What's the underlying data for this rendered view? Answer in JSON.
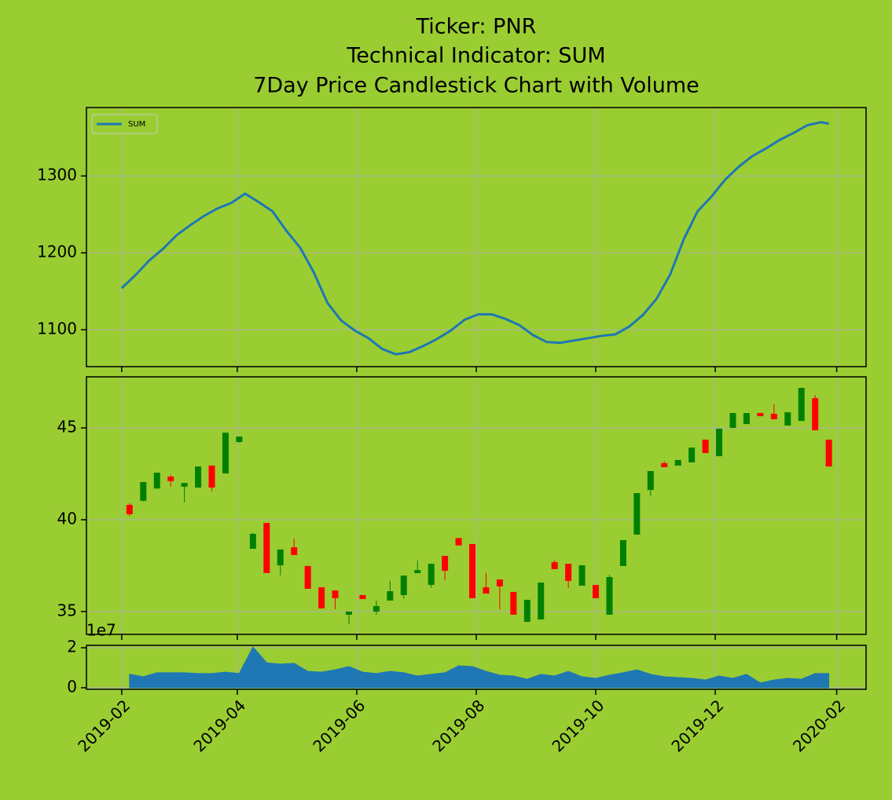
{
  "chart_data": [
    {
      "type": "line",
      "title": [
        "Ticker: PNR",
        "Technical Indicator: SUM",
        "7Day Price Candlestick Chart with Volume"
      ],
      "x": [
        "2019-02-01",
        "2019-02-08",
        "2019-02-15",
        "2019-02-22",
        "2019-03-01",
        "2019-03-08",
        "2019-03-15",
        "2019-03-22",
        "2019-03-29",
        "2019-04-05",
        "2019-04-12",
        "2019-04-19",
        "2019-04-26",
        "2019-05-03",
        "2019-05-10",
        "2019-05-17",
        "2019-05-24",
        "2019-05-31",
        "2019-06-07",
        "2019-06-14",
        "2019-06-21",
        "2019-06-28",
        "2019-07-05",
        "2019-07-12",
        "2019-07-19",
        "2019-07-26",
        "2019-08-02",
        "2019-08-09",
        "2019-08-16",
        "2019-08-23",
        "2019-08-30",
        "2019-09-06",
        "2019-09-13",
        "2019-09-20",
        "2019-09-27",
        "2019-10-04",
        "2019-10-11",
        "2019-10-18",
        "2019-10-25",
        "2019-11-01",
        "2019-11-08",
        "2019-11-15",
        "2019-11-22",
        "2019-11-29",
        "2019-12-06",
        "2019-12-13",
        "2019-12-20",
        "2019-12-27",
        "2020-01-03",
        "2020-01-10",
        "2020-01-17",
        "2020-01-24",
        "2020-01-28"
      ],
      "series": [
        {
          "name": "SUM",
          "color": "#1f77b4",
          "values": [
            1154,
            1171,
            1190,
            1205,
            1223,
            1236,
            1248,
            1258,
            1265,
            1277,
            1266,
            1254,
            1229,
            1207,
            1175,
            1135,
            1112,
            1099,
            1089,
            1075,
            1068,
            1071,
            1079,
            1088,
            1099,
            1113,
            1120,
            1120,
            1114,
            1106,
            1093,
            1084,
            1083,
            1086,
            1089,
            1092,
            1094,
            1104,
            1119,
            1140,
            1172,
            1218,
            1254,
            1273,
            1295,
            1312,
            1326,
            1336,
            1347,
            1356,
            1366,
            1370,
            1368
          ]
        }
      ],
      "xlim": [
        "2019-01-14",
        "2020-02-16"
      ],
      "xticks": [
        "2019-02",
        "2019-04",
        "2019-06",
        "2019-08",
        "2019-10",
        "2019-12",
        "2020-02"
      ],
      "ylim": [
        1052,
        1389
      ],
      "yticks": [
        1100,
        1200,
        1300
      ],
      "grid": true,
      "legend": "upper left"
    },
    {
      "type": "candlestick",
      "x": [
        "2019-02-05",
        "2019-02-12",
        "2019-02-19",
        "2019-02-26",
        "2019-03-05",
        "2019-03-12",
        "2019-03-19",
        "2019-03-26",
        "2019-04-02",
        "2019-04-09",
        "2019-04-16",
        "2019-04-23",
        "2019-04-30",
        "2019-05-07",
        "2019-05-14",
        "2019-05-21",
        "2019-05-28",
        "2019-06-04",
        "2019-06-11",
        "2019-06-18",
        "2019-06-25",
        "2019-07-02",
        "2019-07-09",
        "2019-07-16",
        "2019-07-23",
        "2019-07-30",
        "2019-08-06",
        "2019-08-13",
        "2019-08-20",
        "2019-08-27",
        "2019-09-03",
        "2019-09-10",
        "2019-09-17",
        "2019-09-24",
        "2019-10-01",
        "2019-10-08",
        "2019-10-15",
        "2019-10-22",
        "2019-10-29",
        "2019-11-05",
        "2019-11-12",
        "2019-11-19",
        "2019-11-26",
        "2019-12-03",
        "2019-12-10",
        "2019-12-17",
        "2019-12-24",
        "2019-12-31",
        "2020-01-07",
        "2020-01-14",
        "2020-01-21",
        "2020-01-28"
      ],
      "open": [
        40.81,
        41.03,
        41.7,
        42.35,
        41.8,
        41.75,
        42.95,
        42.52,
        44.23,
        38.42,
        39.83,
        37.52,
        38.5,
        37.48,
        36.32,
        36.15,
        34.83,
        35.9,
        35.0,
        35.6,
        35.9,
        37.09,
        36.45,
        38.03,
        39.0,
        38.68,
        36.32,
        36.75,
        36.07,
        34.44,
        34.57,
        37.69,
        37.6,
        36.41,
        36.45,
        34.83,
        37.48,
        39.19,
        41.62,
        43.08,
        42.95,
        43.12,
        44.36,
        43.46,
        45.0,
        45.21,
        45.81,
        45.77,
        45.13,
        45.38,
        46.62,
        44.36
      ],
      "high": [
        40.9,
        42.05,
        42.56,
        42.45,
        42.0,
        42.9,
        42.95,
        44.74,
        44.53,
        39.3,
        39.83,
        38.38,
        38.97,
        37.5,
        36.32,
        36.15,
        35.0,
        35.9,
        35.6,
        36.67,
        36.96,
        37.78,
        37.6,
        38.03,
        39.0,
        38.68,
        37.1,
        36.75,
        36.07,
        35.64,
        36.58,
        37.8,
        37.6,
        37.52,
        36.45,
        37.0,
        38.89,
        41.45,
        42.65,
        43.2,
        43.25,
        43.93,
        44.36,
        44.96,
        45.81,
        45.81,
        45.81,
        46.28,
        45.85,
        47.18,
        46.79,
        44.36
      ],
      "low": [
        40.2,
        41.0,
        41.7,
        41.8,
        40.94,
        41.75,
        41.55,
        42.52,
        44.2,
        38.42,
        37.1,
        36.97,
        38.08,
        36.24,
        35.17,
        35.13,
        34.32,
        35.68,
        34.83,
        35.6,
        35.7,
        37.09,
        36.3,
        36.7,
        38.6,
        35.73,
        35.98,
        35.13,
        34.83,
        34.44,
        34.57,
        37.31,
        36.28,
        36.41,
        35.73,
        34.83,
        37.48,
        39.19,
        41.3,
        42.86,
        42.95,
        43.12,
        43.63,
        43.46,
        45.0,
        45.21,
        45.64,
        45.47,
        45.13,
        45.38,
        44.87,
        42.9
      ],
      "close": [
        40.3,
        42.05,
        42.56,
        42.1,
        42.0,
        42.9,
        41.75,
        44.74,
        44.53,
        39.23,
        37.1,
        38.38,
        38.08,
        36.24,
        35.17,
        35.73,
        35.0,
        35.68,
        35.3,
        36.11,
        36.96,
        37.26,
        37.6,
        37.22,
        38.6,
        35.73,
        35.98,
        36.37,
        34.83,
        35.64,
        36.58,
        37.31,
        36.67,
        37.52,
        35.73,
        36.88,
        38.89,
        41.45,
        42.65,
        42.86,
        43.25,
        43.93,
        43.63,
        44.96,
        45.81,
        45.81,
        45.64,
        45.47,
        45.85,
        47.18,
        44.87,
        42.9
      ],
      "up_color": "green",
      "down_color": "red",
      "xlim": [
        "2019-01-14",
        "2020-02-16"
      ],
      "xticks": [
        "2019-02",
        "2019-04",
        "2019-06",
        "2019-08",
        "2019-10",
        "2019-12",
        "2020-02"
      ],
      "ylim": [
        33.76,
        47.78
      ],
      "yticks": [
        35,
        40,
        45
      ],
      "grid": true
    },
    {
      "type": "area",
      "x": [
        "2019-02-05",
        "2019-02-12",
        "2019-02-19",
        "2019-02-26",
        "2019-03-05",
        "2019-03-12",
        "2019-03-19",
        "2019-03-26",
        "2019-04-02",
        "2019-04-09",
        "2019-04-16",
        "2019-04-23",
        "2019-04-30",
        "2019-05-07",
        "2019-05-14",
        "2019-05-21",
        "2019-05-28",
        "2019-06-04",
        "2019-06-11",
        "2019-06-18",
        "2019-06-25",
        "2019-07-02",
        "2019-07-09",
        "2019-07-16",
        "2019-07-23",
        "2019-07-30",
        "2019-08-06",
        "2019-08-13",
        "2019-08-20",
        "2019-08-27",
        "2019-09-03",
        "2019-09-10",
        "2019-09-17",
        "2019-09-24",
        "2019-10-01",
        "2019-10-08",
        "2019-10-15",
        "2019-10-22",
        "2019-10-29",
        "2019-11-05",
        "2019-11-12",
        "2019-11-19",
        "2019-11-26",
        "2019-12-03",
        "2019-12-10",
        "2019-12-17",
        "2019-12-24",
        "2019-12-31",
        "2020-01-07",
        "2020-01-14",
        "2020-01-21",
        "2020-01-28"
      ],
      "values": [
        6700000,
        5500000,
        7500000,
        7500000,
        7500000,
        7100000,
        7100000,
        7800000,
        7100000,
        20400000,
        12500000,
        11800000,
        12200000,
        8200000,
        7800000,
        9000000,
        10600000,
        7800000,
        7100000,
        8200000,
        7500000,
        5900000,
        6700000,
        7500000,
        11000000,
        10600000,
        8200000,
        6300000,
        5900000,
        4300000,
        6700000,
        5900000,
        8200000,
        5500000,
        4700000,
        6300000,
        7500000,
        9000000,
        6700000,
        5500000,
        5100000,
        4700000,
        3900000,
        5900000,
        4700000,
        6700000,
        2400000,
        3900000,
        4700000,
        4300000,
        7100000,
        7100000
      ],
      "color": "#1f77b4",
      "xlim": [
        "2019-01-14",
        "2020-02-16"
      ],
      "xticks": [
        "2019-02",
        "2019-04",
        "2019-06",
        "2019-08",
        "2019-10",
        "2019-12",
        "2020-02"
      ],
      "ylim": [
        -780000,
        21200000
      ],
      "yticks": [
        0,
        {
          "value": 20000000,
          "label": "2"
        }
      ],
      "offset_label": "1e7",
      "grid": true
    }
  ]
}
